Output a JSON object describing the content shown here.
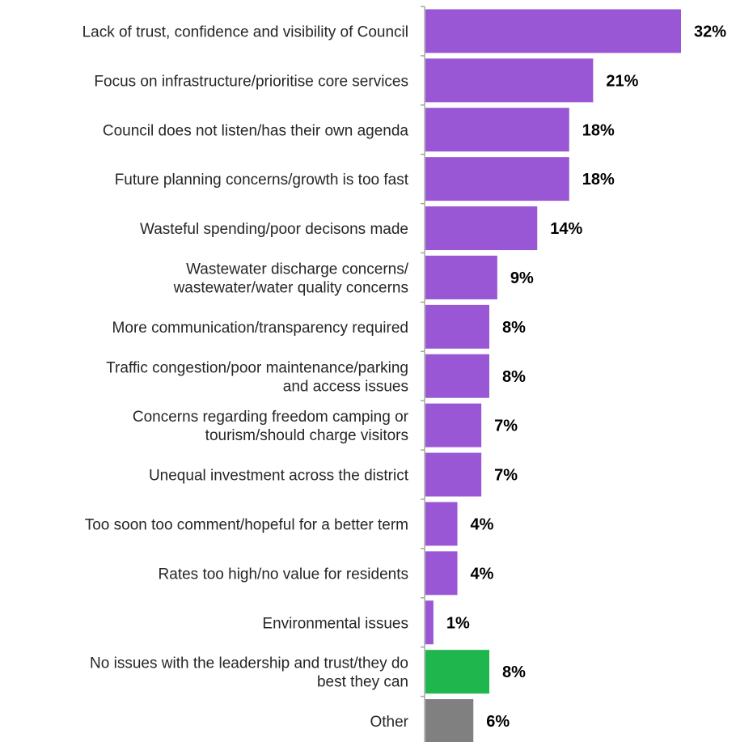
{
  "chart_data": {
    "type": "bar",
    "orientation": "horizontal",
    "title": "",
    "xlabel": "",
    "ylabel": "",
    "xlim": [
      0,
      32
    ],
    "grid": false,
    "legend": "none",
    "value_suffix": "%",
    "categories": [
      [
        "Lack of trust, confidence and visibility of Council"
      ],
      [
        "Focus on infrastructure/prioritise core services"
      ],
      [
        "Council does not listen/has their own agenda"
      ],
      [
        "Future planning concerns/growth is too fast"
      ],
      [
        "Wasteful spending/poor decisons made"
      ],
      [
        "Wastewater discharge concerns/",
        "wastewater/water quality concerns"
      ],
      [
        "More communication/transparency required"
      ],
      [
        "Traffic congestion/poor maintenance/parking",
        "and access issues"
      ],
      [
        "Concerns regarding freedom camping or",
        "tourism/should charge visitors"
      ],
      [
        "Unequal investment across the district"
      ],
      [
        "Too soon too comment/hopeful for a better term"
      ],
      [
        "Rates too high/no value for residents"
      ],
      [
        "Environmental issues"
      ],
      [
        "No issues with the leadership and trust/they do",
        "best they can"
      ],
      [
        "Other"
      ]
    ],
    "values": [
      32,
      21,
      18,
      18,
      14,
      9,
      8,
      8,
      7,
      7,
      4,
      4,
      1,
      8,
      6
    ],
    "colors": [
      "#9a57d5",
      "#9a57d5",
      "#9a57d5",
      "#9a57d5",
      "#9a57d5",
      "#9a57d5",
      "#9a57d5",
      "#9a57d5",
      "#9a57d5",
      "#9a57d5",
      "#9a57d5",
      "#9a57d5",
      "#9a57d5",
      "#1fb64e",
      "#808080"
    ]
  },
  "colors": {
    "issue": "#9a57d5",
    "no_issues": "#1fb64e",
    "other": "#808080",
    "axis": "#a6a6a6"
  }
}
